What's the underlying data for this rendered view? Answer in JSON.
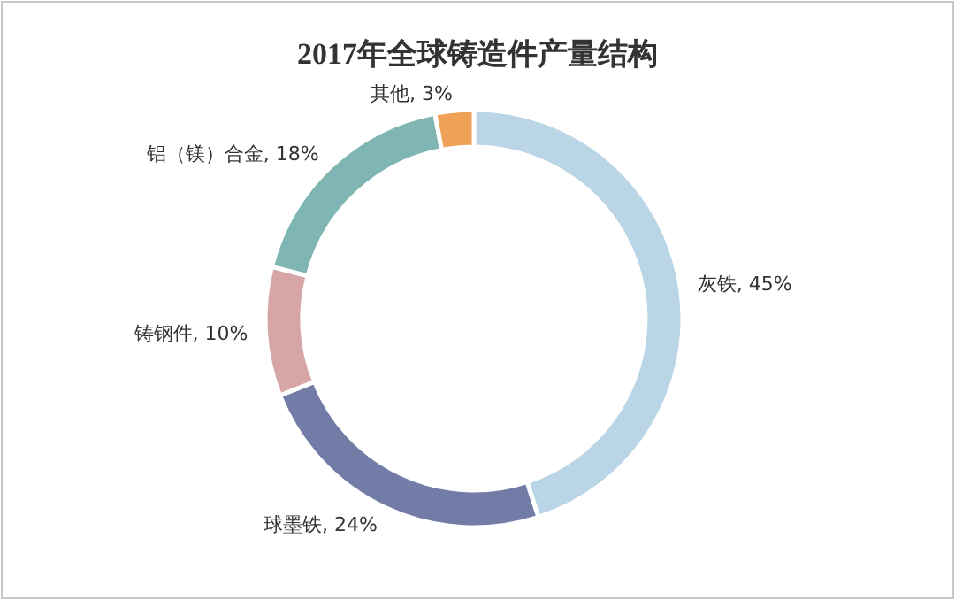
{
  "chart_data": {
    "type": "donut",
    "title": "2017年全球铸造件产量结构",
    "categories": [
      "灰铁",
      "球墨铁",
      "铸钢件",
      "铝（镁）合金",
      "其他"
    ],
    "values": [
      45,
      24,
      10,
      18,
      3
    ],
    "value_labels": [
      "45%",
      "24%",
      "10%",
      "18%",
      "3%"
    ],
    "colors": [
      "#bad5e6",
      "#737ca6",
      "#d6a6a6",
      "#7fb6b4",
      "#eea157"
    ]
  }
}
